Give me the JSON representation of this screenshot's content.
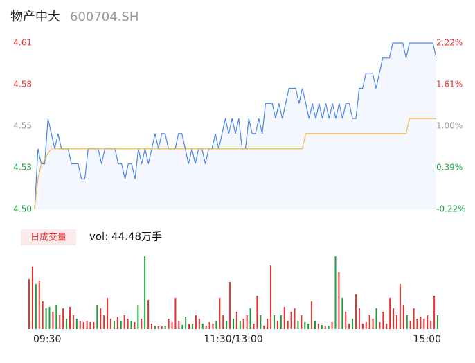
{
  "header": {
    "name": "物产中大",
    "code": "600704.SH"
  },
  "chart_data": [
    {
      "type": "line",
      "xlim": [
        0,
        120
      ],
      "ylim": [
        4.5,
        4.61
      ],
      "yticks": [
        4.61,
        {
          "value": 4.5825,
          "label": "4.58"
        },
        {
          "value": 4.555,
          "label": "4.55"
        },
        {
          "value": 4.5275,
          "label": "4.53"
        },
        {
          "value": 4.5,
          "label": "4.50"
        }
      ],
      "ytick_colors": [
        "#e8312f",
        "#e8312f",
        "#999999",
        "#1a9e3a",
        "#1a9e3a"
      ],
      "y2lim": [
        -0.22,
        2.22
      ],
      "y2ticks": [
        {
          "value": 2.22,
          "label": "2.22%"
        },
        {
          "value": 1.61,
          "label": "1.61%"
        },
        {
          "value": 1,
          "label": "1.00%"
        },
        {
          "value": 0.39,
          "label": "0.39%"
        },
        {
          "value": -0.22,
          "label": "-0.22%"
        }
      ],
      "y2tick_colors": [
        "#e8312f",
        "#e8312f",
        "#999999",
        "#1a9e3a",
        "#1a9e3a"
      ],
      "area_color": "#f4f7fd",
      "series": [
        {
          "color": "#4a86e8",
          "values": [
            4.5,
            4.54,
            4.53,
            4.53,
            4.56,
            4.55,
            4.54,
            4.55,
            4.54,
            4.54,
            4.54,
            4.53,
            4.53,
            4.53,
            4.52,
            4.52,
            4.54,
            4.54,
            4.54,
            4.54,
            4.53,
            4.54,
            4.54,
            4.54,
            4.54,
            4.53,
            4.53,
            4.52,
            4.53,
            4.53,
            4.52,
            4.54,
            4.53,
            4.54,
            4.53,
            4.54,
            4.55,
            4.54,
            4.55,
            4.55,
            4.54,
            4.54,
            4.54,
            4.55,
            4.55,
            4.54,
            4.53,
            4.54,
            4.53,
            4.54,
            4.54,
            4.53,
            4.54,
            4.54,
            4.55,
            4.54,
            4.55,
            4.56,
            4.55,
            4.56,
            4.55,
            4.56,
            4.54,
            4.54,
            4.56,
            4.55,
            4.55,
            4.56,
            4.55,
            4.57,
            4.57,
            4.57,
            4.56,
            4.57,
            4.56,
            4.57,
            4.58,
            4.58,
            4.58,
            4.57,
            4.58,
            4.57,
            4.56,
            4.57,
            4.56,
            4.57,
            4.56,
            4.57,
            4.56,
            4.57,
            4.56,
            4.57,
            4.56,
            4.57,
            4.57,
            4.56,
            4.56,
            4.58,
            4.58,
            4.59,
            4.59,
            4.59,
            4.58,
            4.59,
            4.6,
            4.6,
            4.6,
            4.61,
            4.61,
            4.61,
            4.61,
            4.6,
            4.61,
            4.61,
            4.61,
            4.61,
            4.61,
            4.61,
            4.61,
            4.61,
            4.6
          ]
        },
        {
          "color": "#f5b942",
          "values": [
            4.5,
            4.52,
            4.53,
            4.533,
            4.537,
            4.54,
            4.54,
            4.54,
            4.54,
            4.54,
            4.54,
            4.54,
            4.54,
            4.54,
            4.54,
            4.54,
            4.54,
            4.54,
            4.54,
            4.54,
            4.54,
            4.54,
            4.54,
            4.54,
            4.54,
            4.54,
            4.54,
            4.54,
            4.54,
            4.54,
            4.54,
            4.54,
            4.54,
            4.54,
            4.54,
            4.54,
            4.54,
            4.54,
            4.54,
            4.54,
            4.54,
            4.54,
            4.54,
            4.54,
            4.54,
            4.54,
            4.54,
            4.54,
            4.54,
            4.54,
            4.54,
            4.54,
            4.54,
            4.54,
            4.54,
            4.54,
            4.54,
            4.54,
            4.54,
            4.54,
            4.54,
            4.54,
            4.54,
            4.54,
            4.54,
            4.54,
            4.54,
            4.54,
            4.54,
            4.54,
            4.54,
            4.54,
            4.54,
            4.54,
            4.54,
            4.54,
            4.54,
            4.54,
            4.54,
            4.54,
            4.54,
            4.55,
            4.55,
            4.55,
            4.55,
            4.55,
            4.55,
            4.55,
            4.55,
            4.55,
            4.55,
            4.55,
            4.55,
            4.55,
            4.55,
            4.55,
            4.55,
            4.55,
            4.55,
            4.55,
            4.55,
            4.55,
            4.55,
            4.55,
            4.55,
            4.55,
            4.55,
            4.55,
            4.55,
            4.55,
            4.55,
            4.55,
            4.56,
            4.56,
            4.56,
            4.56,
            4.56,
            4.56,
            4.56,
            4.56,
            4.56
          ]
        }
      ]
    },
    {
      "type": "bar",
      "title": "日成交量",
      "subtitle": "vol: 44.48万手",
      "xlim": [
        0,
        120
      ],
      "ylim": [
        0,
        1.05
      ],
      "xticks": [
        {
          "value": 0,
          "label": "09:30"
        },
        {
          "value": 60,
          "label": "11:30/13:00"
        },
        {
          "value": 120,
          "label": "15:00"
        }
      ],
      "up_color": "#e8312f",
      "down_color": "#1a9e3a",
      "values": [
        0.72,
        0.9,
        0.65,
        0.7,
        0.4,
        0.3,
        0.32,
        0.25,
        0.35,
        0.2,
        0.3,
        0.15,
        0.32,
        0.2,
        0.15,
        0.12,
        0.1,
        0.12,
        0.1,
        0.1,
        0.35,
        0.3,
        0.2,
        0.45,
        0.15,
        0.12,
        0.18,
        0.12,
        0.2,
        0.15,
        0.12,
        0.1,
        0.35,
        0.15,
        1.05,
        0.42,
        0.08,
        0.05,
        0.04,
        0.04,
        0.05,
        0.15,
        0.1,
        0.45,
        0.12,
        0.06,
        0.18,
        0.08,
        0.07,
        0.2,
        0.15,
        0.08,
        0.05,
        0.1,
        0.08,
        0.12,
        0.45,
        0.2,
        0.12,
        0.68,
        0.15,
        0.25,
        0.12,
        0.15,
        0.2,
        0.3,
        0.08,
        0.48,
        0.2,
        0.05,
        0.15,
        0.92,
        0.2,
        0.12,
        0.2,
        0.32,
        0.12,
        0.25,
        0.3,
        0.12,
        0.2,
        0.1,
        0.08,
        0.4,
        0.12,
        0.08,
        0.06,
        0.05,
        0.05,
        0.1,
        1.05,
        0.82,
        0.45,
        0.25,
        0.08,
        0.15,
        0.5,
        0.3,
        0.08,
        0.1,
        0.2,
        0.15,
        0.3,
        0.1,
        0.25,
        0.08,
        0.45,
        0.3,
        0.2,
        0.65,
        0.35,
        0.2,
        0.12,
        0.3,
        0.15,
        0.18,
        0.15,
        0.2,
        0.12,
        0.48,
        0.2
      ]
    }
  ]
}
